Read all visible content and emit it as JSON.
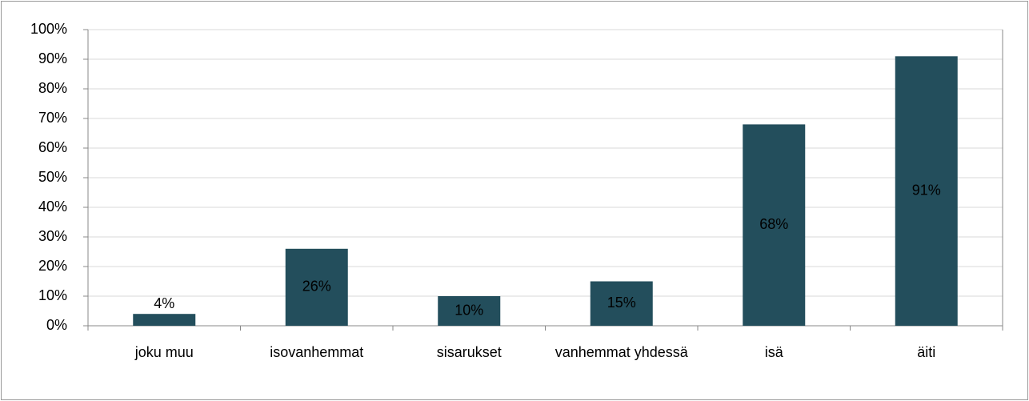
{
  "chart_data": {
    "type": "bar",
    "categories": [
      "joku muu",
      "isovanhemmat",
      "sisarukset",
      "vanhemmat yhdessä",
      "isä",
      "äiti"
    ],
    "values": [
      4,
      26,
      10,
      15,
      68,
      91
    ],
    "value_labels": [
      "4%",
      "26%",
      "10%",
      "15%",
      "68%",
      "91%"
    ],
    "color": "#234e5c",
    "ylim": [
      0,
      100
    ],
    "yticks": [
      {
        "value": 0,
        "label": "0%"
      },
      {
        "value": 10,
        "label": "10%"
      },
      {
        "value": 20,
        "label": "20%"
      },
      {
        "value": 30,
        "label": "30%"
      },
      {
        "value": 40,
        "label": "40%"
      },
      {
        "value": 50,
        "label": "50%"
      },
      {
        "value": 60,
        "label": "60%"
      },
      {
        "value": 70,
        "label": "70%"
      },
      {
        "value": 80,
        "label": "80%"
      },
      {
        "value": 90,
        "label": "90%"
      },
      {
        "value": 100,
        "label": "100%"
      }
    ],
    "grid": true
  }
}
